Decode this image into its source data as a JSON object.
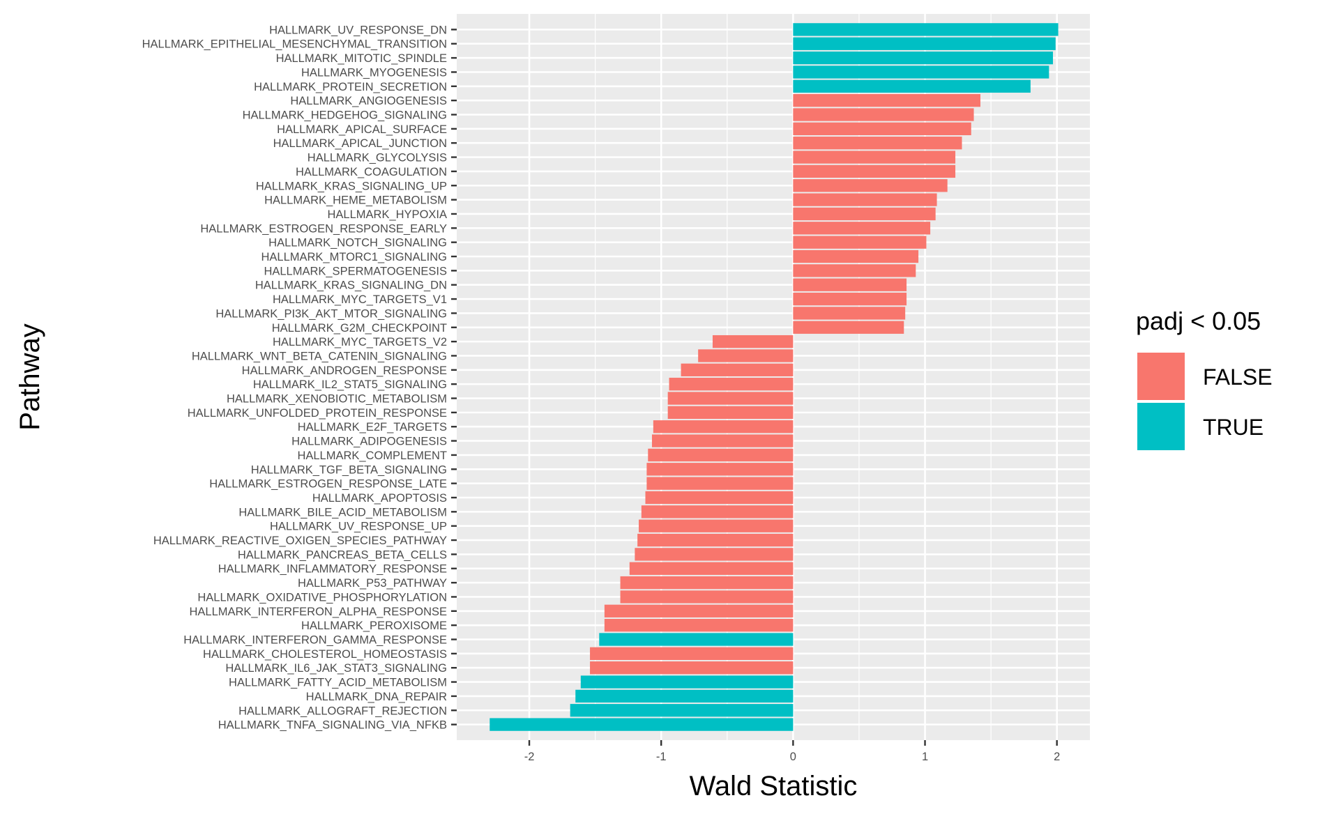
{
  "chart_data": {
    "type": "bar",
    "orientation": "horizontal",
    "xlabel": "Wald Statistic",
    "ylabel": "Pathway",
    "xlim": [
      -2.55,
      2.25
    ],
    "xticks": [
      -2,
      -1,
      0,
      1,
      2
    ],
    "xtick_labels": [
      "-2",
      "-1",
      "0",
      "1",
      "2"
    ],
    "grid": true,
    "legend": {
      "title": "padj < 0.05",
      "placement": "right",
      "entries": [
        {
          "label": "FALSE",
          "color": "#F8766D"
        },
        {
          "label": "TRUE",
          "color": "#00BFC4"
        }
      ]
    },
    "colors": {
      "FALSE": "#F8766D",
      "TRUE": "#00BFC4",
      "panel": "#EBEBEB",
      "grid": "#FFFFFF"
    },
    "bars": [
      {
        "pathway": "HALLMARK_UV_RESPONSE_DN",
        "value": 2.01,
        "padj": "TRUE"
      },
      {
        "pathway": "HALLMARK_EPITHELIAL_MESENCHYMAL_TRANSITION",
        "value": 1.99,
        "padj": "TRUE"
      },
      {
        "pathway": "HALLMARK_MITOTIC_SPINDLE",
        "value": 1.97,
        "padj": "TRUE"
      },
      {
        "pathway": "HALLMARK_MYOGENESIS",
        "value": 1.94,
        "padj": "TRUE"
      },
      {
        "pathway": "HALLMARK_PROTEIN_SECRETION",
        "value": 1.8,
        "padj": "TRUE"
      },
      {
        "pathway": "HALLMARK_ANGIOGENESIS",
        "value": 1.42,
        "padj": "FALSE"
      },
      {
        "pathway": "HALLMARK_HEDGEHOG_SIGNALING",
        "value": 1.37,
        "padj": "FALSE"
      },
      {
        "pathway": "HALLMARK_APICAL_SURFACE",
        "value": 1.35,
        "padj": "FALSE"
      },
      {
        "pathway": "HALLMARK_APICAL_JUNCTION",
        "value": 1.28,
        "padj": "FALSE"
      },
      {
        "pathway": "HALLMARK_GLYCOLYSIS",
        "value": 1.23,
        "padj": "FALSE"
      },
      {
        "pathway": "HALLMARK_COAGULATION",
        "value": 1.23,
        "padj": "FALSE"
      },
      {
        "pathway": "HALLMARK_KRAS_SIGNALING_UP",
        "value": 1.17,
        "padj": "FALSE"
      },
      {
        "pathway": "HALLMARK_HEME_METABOLISM",
        "value": 1.09,
        "padj": "FALSE"
      },
      {
        "pathway": "HALLMARK_HYPOXIA",
        "value": 1.08,
        "padj": "FALSE"
      },
      {
        "pathway": "HALLMARK_ESTROGEN_RESPONSE_EARLY",
        "value": 1.04,
        "padj": "FALSE"
      },
      {
        "pathway": "HALLMARK_NOTCH_SIGNALING",
        "value": 1.01,
        "padj": "FALSE"
      },
      {
        "pathway": "HALLMARK_MTORC1_SIGNALING",
        "value": 0.95,
        "padj": "FALSE"
      },
      {
        "pathway": "HALLMARK_SPERMATOGENESIS",
        "value": 0.93,
        "padj": "FALSE"
      },
      {
        "pathway": "HALLMARK_KRAS_SIGNALING_DN",
        "value": 0.86,
        "padj": "FALSE"
      },
      {
        "pathway": "HALLMARK_MYC_TARGETS_V1",
        "value": 0.86,
        "padj": "FALSE"
      },
      {
        "pathway": "HALLMARK_PI3K_AKT_MTOR_SIGNALING",
        "value": 0.85,
        "padj": "FALSE"
      },
      {
        "pathway": "HALLMARK_G2M_CHECKPOINT",
        "value": 0.84,
        "padj": "FALSE"
      },
      {
        "pathway": "HALLMARK_MYC_TARGETS_V2",
        "value": -0.61,
        "padj": "FALSE"
      },
      {
        "pathway": "HALLMARK_WNT_BETA_CATENIN_SIGNALING",
        "value": -0.72,
        "padj": "FALSE"
      },
      {
        "pathway": "HALLMARK_ANDROGEN_RESPONSE",
        "value": -0.85,
        "padj": "FALSE"
      },
      {
        "pathway": "HALLMARK_IL2_STAT5_SIGNALING",
        "value": -0.94,
        "padj": "FALSE"
      },
      {
        "pathway": "HALLMARK_XENOBIOTIC_METABOLISM",
        "value": -0.95,
        "padj": "FALSE"
      },
      {
        "pathway": "HALLMARK_UNFOLDED_PROTEIN_RESPONSE",
        "value": -0.95,
        "padj": "FALSE"
      },
      {
        "pathway": "HALLMARK_E2F_TARGETS",
        "value": -1.06,
        "padj": "FALSE"
      },
      {
        "pathway": "HALLMARK_ADIPOGENESIS",
        "value": -1.07,
        "padj": "FALSE"
      },
      {
        "pathway": "HALLMARK_COMPLEMENT",
        "value": -1.1,
        "padj": "FALSE"
      },
      {
        "pathway": "HALLMARK_TGF_BETA_SIGNALING",
        "value": -1.11,
        "padj": "FALSE"
      },
      {
        "pathway": "HALLMARK_ESTROGEN_RESPONSE_LATE",
        "value": -1.11,
        "padj": "FALSE"
      },
      {
        "pathway": "HALLMARK_APOPTOSIS",
        "value": -1.12,
        "padj": "FALSE"
      },
      {
        "pathway": "HALLMARK_BILE_ACID_METABOLISM",
        "value": -1.15,
        "padj": "FALSE"
      },
      {
        "pathway": "HALLMARK_UV_RESPONSE_UP",
        "value": -1.17,
        "padj": "FALSE"
      },
      {
        "pathway": "HALLMARK_REACTIVE_OXIGEN_SPECIES_PATHWAY",
        "value": -1.18,
        "padj": "FALSE"
      },
      {
        "pathway": "HALLMARK_PANCREAS_BETA_CELLS",
        "value": -1.2,
        "padj": "FALSE"
      },
      {
        "pathway": "HALLMARK_INFLAMMATORY_RESPONSE",
        "value": -1.24,
        "padj": "FALSE"
      },
      {
        "pathway": "HALLMARK_P53_PATHWAY",
        "value": -1.31,
        "padj": "FALSE"
      },
      {
        "pathway": "HALLMARK_OXIDATIVE_PHOSPHORYLATION",
        "value": -1.31,
        "padj": "FALSE"
      },
      {
        "pathway": "HALLMARK_INTERFERON_ALPHA_RESPONSE",
        "value": -1.43,
        "padj": "FALSE"
      },
      {
        "pathway": "HALLMARK_PEROXISOME",
        "value": -1.43,
        "padj": "FALSE"
      },
      {
        "pathway": "HALLMARK_INTERFERON_GAMMA_RESPONSE",
        "value": -1.47,
        "padj": "TRUE"
      },
      {
        "pathway": "HALLMARK_CHOLESTEROL_HOMEOSTASIS",
        "value": -1.54,
        "padj": "FALSE"
      },
      {
        "pathway": "HALLMARK_IL6_JAK_STAT3_SIGNALING",
        "value": -1.54,
        "padj": "FALSE"
      },
      {
        "pathway": "HALLMARK_FATTY_ACID_METABOLISM",
        "value": -1.61,
        "padj": "TRUE"
      },
      {
        "pathway": "HALLMARK_DNA_REPAIR",
        "value": -1.65,
        "padj": "TRUE"
      },
      {
        "pathway": "HALLMARK_ALLOGRAFT_REJECTION",
        "value": -1.69,
        "padj": "TRUE"
      },
      {
        "pathway": "HALLMARK_TNFA_SIGNALING_VIA_NFKB",
        "value": -2.3,
        "padj": "TRUE"
      }
    ]
  }
}
